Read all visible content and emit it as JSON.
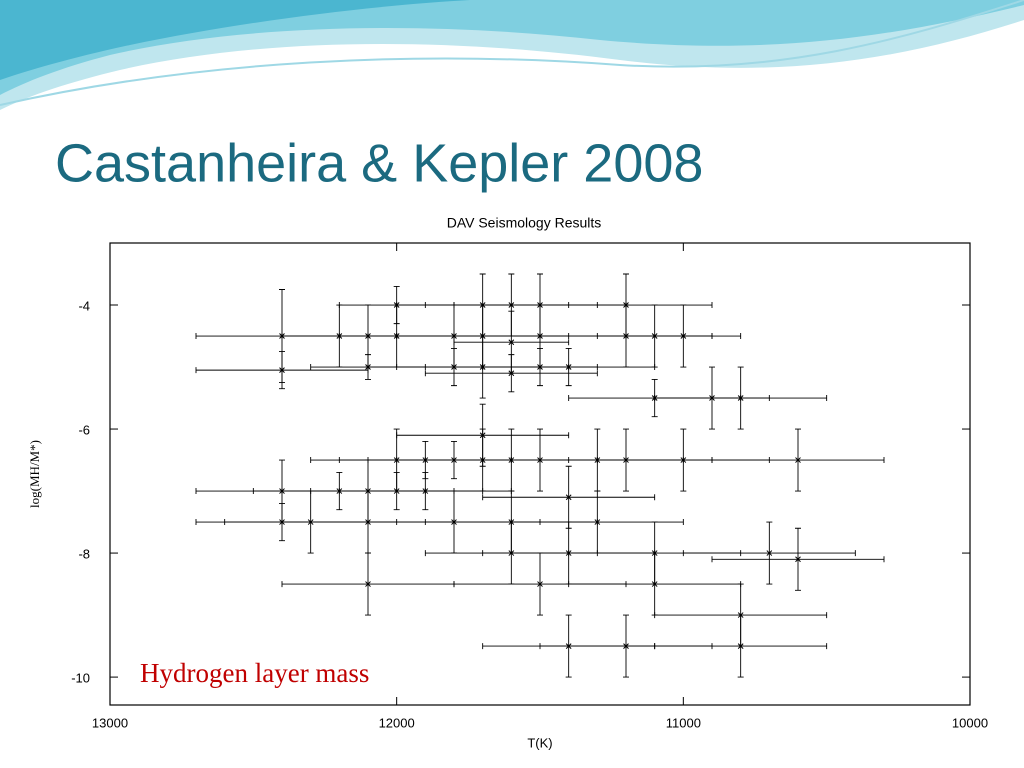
{
  "slide_title": "Castanheira & Kepler 2008",
  "chart_data": {
    "type": "scatter",
    "title": "DAV Seismology Results",
    "xlabel": "T(K)",
    "ylabel": "log(MH/M*)",
    "annotation": "Hydrogen layer mass",
    "annotation_color": "#c00000",
    "xlim": [
      13000,
      10000
    ],
    "xticks": [
      13000,
      12000,
      11000,
      10000
    ],
    "ylim": [
      -10.45,
      -3.0
    ],
    "yticks": [
      -4,
      -6,
      -8,
      -10
    ],
    "series": [
      {
        "color": "#000000",
        "x": [
          12400,
          12400,
          12200,
          12100,
          12100,
          12000,
          12000,
          11800,
          11800,
          11700,
          11700,
          11700,
          11600,
          11600,
          11600,
          11500,
          11500,
          11500,
          11400,
          11200,
          11200,
          11100,
          11100,
          11000,
          10900,
          10800,
          12400,
          12400,
          12300,
          12200,
          12100,
          12100,
          12100,
          12000,
          12000,
          11900,
          11900,
          11800,
          11800,
          11700,
          11700,
          11600,
          11600,
          11600,
          11500,
          11500,
          11400,
          11400,
          11400,
          11300,
          11300,
          11200,
          11200,
          11100,
          11100,
          11000,
          10800,
          10800,
          10700,
          10600,
          10600
        ],
        "values": [
          -4.5,
          -5.05,
          -4.5,
          -4.5,
          -5.0,
          -4.0,
          -4.5,
          -4.5,
          -5.0,
          -4.0,
          -4.5,
          -5.0,
          -4.0,
          -4.6,
          -5.1,
          -4.0,
          -4.5,
          -5.0,
          -5.0,
          -4.0,
          -4.5,
          -4.5,
          -5.5,
          -4.5,
          -5.5,
          -5.5,
          -7.0,
          -7.5,
          -7.5,
          -7.0,
          -7.0,
          -7.5,
          -8.5,
          -6.5,
          -7.0,
          -6.5,
          -7.0,
          -6.5,
          -7.5,
          -6.1,
          -6.5,
          -6.5,
          -7.5,
          -8.0,
          -6.5,
          -8.5,
          -7.1,
          -8.0,
          -9.5,
          -6.5,
          -7.5,
          -6.5,
          -9.5,
          -8.0,
          -8.5,
          -6.5,
          -9.0,
          -9.5,
          -8.0,
          -6.5,
          -8.1
        ],
        "xerr": [
          300,
          300,
          200,
          300,
          200,
          200,
          200,
          300,
          300,
          300,
          300,
          300,
          300,
          200,
          300,
          300,
          300,
          200,
          300,
          300,
          300,
          200,
          300,
          200,
          200,
          300,
          300,
          300,
          300,
          300,
          300,
          300,
          300,
          300,
          300,
          300,
          300,
          300,
          300,
          300,
          300,
          300,
          300,
          300,
          300,
          300,
          300,
          300,
          300,
          300,
          300,
          300,
          300,
          300,
          300,
          300,
          300,
          300,
          300,
          300,
          300
        ],
        "yerr": [
          0.75,
          0.3,
          0.5,
          0.5,
          0.2,
          0.3,
          0.5,
          0.5,
          0.3,
          0.5,
          0.5,
          0.5,
          0.5,
          0.5,
          0.3,
          0.5,
          0.5,
          0.3,
          0.3,
          0.5,
          0.5,
          0.5,
          0.3,
          0.5,
          0.5,
          0.5,
          0.5,
          0.3,
          0.5,
          0.3,
          0.5,
          0.5,
          0.5,
          0.5,
          0.3,
          0.3,
          0.3,
          0.3,
          0.5,
          0.5,
          0.5,
          0.5,
          0.5,
          0.5,
          0.5,
          0.5,
          0.5,
          0.5,
          0.5,
          0.5,
          0.5,
          0.5,
          0.5,
          0.5,
          0.5,
          0.5,
          0.5,
          0.5,
          0.5,
          0.5,
          0.5
        ]
      }
    ]
  }
}
